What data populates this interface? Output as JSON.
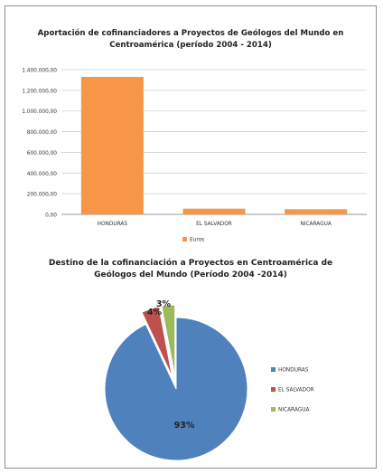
{
  "chart_data": [
    {
      "type": "bar",
      "title_lines": [
        "Aportación de cofinanciadores a Proyectos  de Geólogos del Mundo en",
        "Centroamérica (período 2004 - 2014)"
      ],
      "categories": [
        "HONDURAS",
        "EL SALVADOR",
        "NICARAGUA"
      ],
      "series": [
        {
          "name": "Euros",
          "values": [
            1330000,
            55000,
            50000
          ],
          "color": "#f79646"
        }
      ],
      "ylim": [
        0,
        1400000
      ],
      "yticks": [
        0,
        200000,
        400000,
        600000,
        800000,
        1000000,
        1200000,
        1400000
      ],
      "ytick_labels": [
        "0,00",
        "200.000,00",
        "400.000,00",
        "600.000,00",
        "800.000,00",
        "1.000.000,00",
        "1.200.000,00",
        "1.400.000,00"
      ],
      "grid": true,
      "legend_position": "bottom"
    },
    {
      "type": "pie",
      "title_lines": [
        "Destino de la cofinanciación a Proyectos en Centroamérica de",
        "Geólogos del Mundo (Período 2004 -2014)"
      ],
      "labels": [
        "HONDURAS",
        "EL SALVADOR",
        "NICARAGUA"
      ],
      "values": [
        93,
        4,
        3
      ],
      "value_labels": [
        "93%",
        "4%",
        "3%"
      ],
      "colors": [
        "#4f81bd",
        "#c0504d",
        "#9bbb59"
      ],
      "legend_position": "right"
    }
  ]
}
